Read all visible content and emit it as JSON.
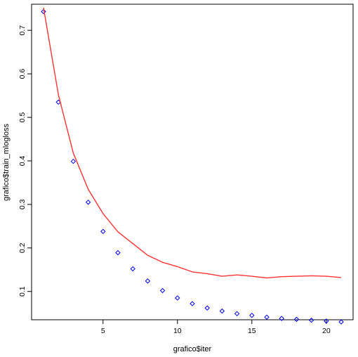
{
  "chart_data": {
    "type": "scatter",
    "xlabel": "grafico$iter",
    "ylabel": "grafico$train_mlogloss",
    "xlim": [
      0.2,
      21.8
    ],
    "ylim": [
      0.035,
      0.76
    ],
    "x_ticks": [
      5,
      10,
      15,
      20
    ],
    "y_ticks": [
      0.1,
      0.2,
      0.3,
      0.4,
      0.5,
      0.6,
      0.7
    ],
    "grid": false,
    "legend": "none",
    "series": [
      {
        "kind": "points",
        "marker": "open-diamond",
        "color": "#0000ff",
        "x": [
          1,
          2,
          3,
          4,
          5,
          6,
          7,
          8,
          9,
          10,
          11,
          12,
          13,
          14,
          15,
          16,
          17,
          18,
          19,
          20,
          21
        ],
        "y": [
          0.743,
          0.535,
          0.399,
          0.305,
          0.238,
          0.189,
          0.152,
          0.124,
          0.102,
          0.085,
          0.072,
          0.062,
          0.055,
          0.049,
          0.045,
          0.041,
          0.038,
          0.036,
          0.034,
          0.032,
          0.03
        ]
      },
      {
        "kind": "line",
        "color": "#ff3333",
        "x": [
          1,
          2,
          3,
          4,
          5,
          6,
          7,
          8,
          9,
          10,
          11,
          12,
          13,
          14,
          15,
          16,
          17,
          18,
          19,
          20,
          21
        ],
        "y": [
          0.752,
          0.552,
          0.418,
          0.335,
          0.279,
          0.237,
          0.21,
          0.183,
          0.167,
          0.157,
          0.145,
          0.141,
          0.135,
          0.138,
          0.135,
          0.131,
          0.134,
          0.135,
          0.136,
          0.135,
          0.132
        ]
      }
    ]
  }
}
